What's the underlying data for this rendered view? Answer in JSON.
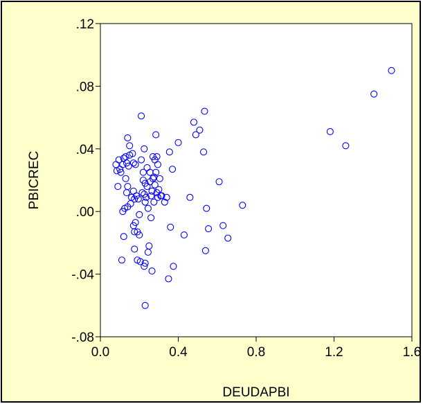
{
  "colors": {
    "panel_background": "#FFFFCC",
    "plot_background": "#FFFFFF",
    "frame_border": "#000000",
    "axis": "#000000",
    "marker": "#0000FF"
  },
  "chart_data": {
    "type": "scatter",
    "title": "",
    "xlabel": "DEUDAPBI",
    "ylabel": "PBICREC",
    "xlim": [
      0.0,
      1.6
    ],
    "ylim": [
      -0.08,
      0.12
    ],
    "x_ticks": [
      0.0,
      0.4,
      0.8,
      1.2,
      1.6
    ],
    "x_tick_labels": [
      "0.0",
      "0.4",
      "0.8",
      "1.2",
      "1.6"
    ],
    "y_ticks": [
      -0.08,
      -0.04,
      0.0,
      0.04,
      0.08,
      0.12
    ],
    "y_tick_labels": [
      "-.08",
      "-.04",
      ".00",
      ".04",
      ".08",
      ".12"
    ],
    "grid": false,
    "marker": "hollow-circle",
    "series": [
      {
        "points": [
          [
            0.08,
            0.03
          ],
          [
            0.085,
            0.026
          ],
          [
            0.09,
            0.016
          ],
          [
            0.095,
            0.033
          ],
          [
            0.1,
            0.027
          ],
          [
            0.105,
            0.025
          ],
          [
            0.11,
            -0.031
          ],
          [
            0.115,
            0.03
          ],
          [
            0.12,
            0.034
          ],
          [
            0.115,
            0.0
          ],
          [
            0.125,
            0.002
          ],
          [
            0.12,
            -0.016
          ],
          [
            0.13,
            0.035
          ],
          [
            0.13,
            0.021
          ],
          [
            0.135,
            0.031
          ],
          [
            0.14,
            0.047
          ],
          [
            0.14,
            0.016
          ],
          [
            0.135,
            0.012
          ],
          [
            0.14,
            0.003
          ],
          [
            0.145,
            0.029
          ],
          [
            0.15,
            0.042
          ],
          [
            0.15,
            0.036
          ],
          [
            0.155,
            0.005
          ],
          [
            0.16,
            0.009
          ],
          [
            0.165,
            0.037
          ],
          [
            0.17,
            0.031
          ],
          [
            0.17,
            0.013
          ],
          [
            0.175,
            0.008
          ],
          [
            0.17,
            -0.009
          ],
          [
            0.175,
            -0.013
          ],
          [
            0.18,
            -0.007
          ],
          [
            0.175,
            -0.024
          ],
          [
            0.18,
            0.03
          ],
          [
            0.185,
            0.01
          ],
          [
            0.19,
            -0.013
          ],
          [
            0.19,
            -0.031
          ],
          [
            0.195,
            0.008
          ],
          [
            0.2,
            -0.002
          ],
          [
            0.2,
            -0.015
          ],
          [
            0.205,
            -0.032
          ],
          [
            0.21,
            0.033
          ],
          [
            0.21,
            0.061
          ],
          [
            0.22,
            0.025
          ],
          [
            0.22,
            0.02
          ],
          [
            0.215,
            0.012
          ],
          [
            0.225,
            0.011
          ],
          [
            0.225,
            0.04
          ],
          [
            0.23,
            0.018
          ],
          [
            0.23,
            0.006
          ],
          [
            0.225,
            -0.035
          ],
          [
            0.23,
            -0.033
          ],
          [
            0.23,
            -0.06
          ],
          [
            0.235,
            0.009
          ],
          [
            0.24,
            0.028
          ],
          [
            0.24,
            0.016
          ],
          [
            0.245,
            0.002
          ],
          [
            0.245,
            -0.026
          ],
          [
            0.25,
            -0.022
          ],
          [
            0.255,
            0.025
          ],
          [
            0.255,
            0.019
          ],
          [
            0.26,
            0.01
          ],
          [
            0.26,
            -0.004
          ],
          [
            0.265,
            0.013
          ],
          [
            0.265,
            -0.038
          ],
          [
            0.27,
            0.035
          ],
          [
            0.27,
            0.021
          ],
          [
            0.275,
            0.022
          ],
          [
            0.275,
            0.006
          ],
          [
            0.28,
            0.033
          ],
          [
            0.28,
            0.017
          ],
          [
            0.285,
            0.025
          ],
          [
            0.285,
            0.049
          ],
          [
            0.29,
            0.012
          ],
          [
            0.29,
            0.035
          ],
          [
            0.295,
            0.03
          ],
          [
            0.295,
            0.009
          ],
          [
            0.3,
            0.014
          ],
          [
            0.305,
            0.021
          ],
          [
            0.31,
            0.01
          ],
          [
            0.315,
            0.01
          ],
          [
            0.33,
            0.006
          ],
          [
            0.34,
            0.009
          ],
          [
            0.35,
            -0.043
          ],
          [
            0.355,
            0.038
          ],
          [
            0.36,
            -0.01
          ],
          [
            0.37,
            0.027
          ],
          [
            0.375,
            -0.035
          ],
          [
            0.4,
            0.044
          ],
          [
            0.43,
            -0.015
          ],
          [
            0.46,
            0.009
          ],
          [
            0.48,
            0.057
          ],
          [
            0.49,
            0.049
          ],
          [
            0.51,
            0.052
          ],
          [
            0.53,
            0.038
          ],
          [
            0.535,
            0.064
          ],
          [
            0.54,
            -0.025
          ],
          [
            0.545,
            0.002
          ],
          [
            0.555,
            -0.011
          ],
          [
            0.61,
            0.019
          ],
          [
            0.63,
            -0.009
          ],
          [
            0.655,
            -0.017
          ],
          [
            0.73,
            0.004
          ],
          [
            1.18,
            0.051
          ],
          [
            1.26,
            0.042
          ],
          [
            1.405,
            0.075
          ],
          [
            1.495,
            0.09
          ]
        ]
      }
    ]
  }
}
